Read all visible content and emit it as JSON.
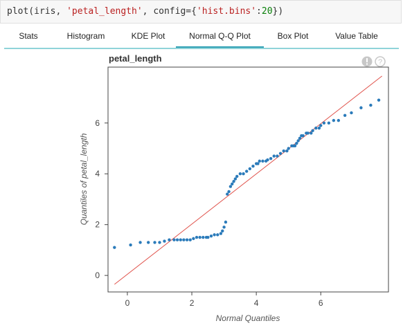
{
  "code": {
    "func": "plot(iris, ",
    "arg1": "'petal_length'",
    "mid": ", config={",
    "key": "'hist.bins'",
    "colon": ":",
    "val": "20",
    "close": "})"
  },
  "tabs": [
    {
      "label": "Stats",
      "active": false
    },
    {
      "label": "Histogram",
      "active": false
    },
    {
      "label": "KDE Plot",
      "active": false
    },
    {
      "label": "Normal Q-Q Plot",
      "active": true
    },
    {
      "label": "Box Plot",
      "active": false
    },
    {
      "label": "Value Table",
      "active": false
    }
  ],
  "plot": {
    "title": "petal_length",
    "info_icon": "exclamation-icon",
    "help_icon": "question-icon"
  },
  "colors": {
    "points": "#2b7bba",
    "reference_line": "#e0524b",
    "active_tab": "#2e9fb3",
    "tab_rule": "#8fd3d9"
  },
  "chart_data": {
    "type": "scatter",
    "title": "petal_length",
    "xlabel": "Normal Quantiles",
    "ylabel": "Quantiles of petal_length",
    "xlim": [
      -0.6,
      8.1
    ],
    "ylim": [
      -0.65,
      8.2
    ],
    "xticks": [
      0,
      2,
      4,
      6
    ],
    "yticks": [
      0,
      2,
      4,
      6
    ],
    "reference_line": {
      "x": [
        -0.4,
        7.9
      ],
      "y": [
        -0.35,
        7.85
      ]
    },
    "series": [
      {
        "x": [
          -0.4,
          0.1,
          0.4,
          0.65,
          0.85,
          1.0,
          1.15,
          1.3,
          1.45,
          1.55,
          1.65,
          1.75,
          1.85,
          1.95,
          2.05,
          2.15,
          2.25,
          2.35,
          2.45,
          2.5,
          2.6,
          2.7,
          2.8,
          2.9,
          2.95,
          3.0,
          3.05,
          3.1,
          3.15,
          3.2,
          3.25,
          3.3,
          3.35,
          3.4,
          3.5,
          3.6,
          3.7,
          3.8,
          3.9,
          4.0,
          4.05,
          4.1,
          4.2,
          4.3,
          4.35,
          4.45,
          4.55,
          4.65,
          4.75,
          4.85,
          4.95,
          5.0,
          5.1,
          5.15,
          5.2,
          5.25,
          5.3,
          5.35,
          5.4,
          5.45,
          5.55,
          5.6,
          5.7,
          5.75,
          5.85,
          5.95,
          6.0,
          6.1,
          6.25,
          6.4,
          6.55,
          6.75,
          6.95,
          7.25,
          7.55,
          7.8
        ],
        "y": [
          1.1,
          1.2,
          1.3,
          1.3,
          1.3,
          1.3,
          1.35,
          1.4,
          1.4,
          1.4,
          1.4,
          1.4,
          1.4,
          1.4,
          1.45,
          1.5,
          1.5,
          1.5,
          1.5,
          1.5,
          1.55,
          1.6,
          1.6,
          1.65,
          1.75,
          1.9,
          2.1,
          3.2,
          3.3,
          3.5,
          3.6,
          3.7,
          3.8,
          3.9,
          4.0,
          4.0,
          4.1,
          4.2,
          4.3,
          4.4,
          4.4,
          4.5,
          4.5,
          4.5,
          4.55,
          4.6,
          4.7,
          4.7,
          4.8,
          4.9,
          4.9,
          5.0,
          5.1,
          5.1,
          5.1,
          5.2,
          5.3,
          5.4,
          5.5,
          5.5,
          5.6,
          5.6,
          5.6,
          5.7,
          5.8,
          5.8,
          5.9,
          6.0,
          6.0,
          6.1,
          6.1,
          6.3,
          6.4,
          6.6,
          6.7,
          6.9
        ]
      }
    ]
  }
}
